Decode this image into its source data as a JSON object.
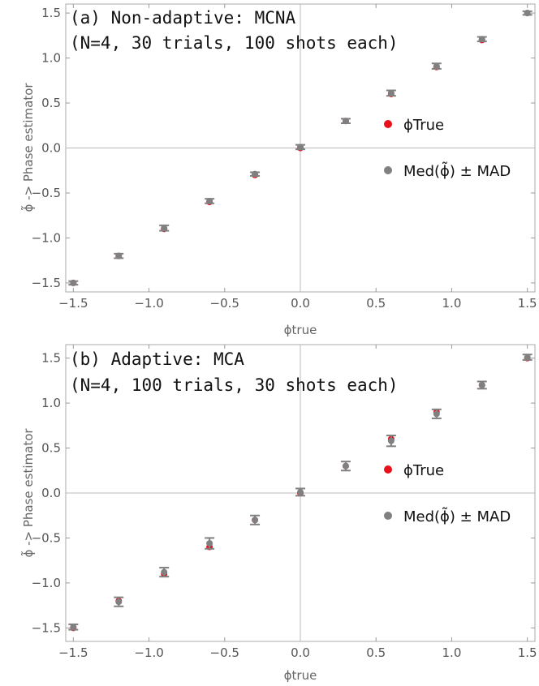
{
  "chart_data": [
    {
      "type": "scatter",
      "title_line1": "(a) Non-adaptive: MCNA",
      "title_line2": "(N=4, 30 trials, 100 shots each)",
      "xlabel": "ϕtrue",
      "ylabel": "ϕ̃ -> Phase estimator",
      "xlim": [
        -1.55,
        1.55
      ],
      "ylim": [
        -1.6,
        1.6
      ],
      "xticks": [
        -1.5,
        -1.0,
        -0.5,
        0.0,
        0.5,
        1.0,
        1.5
      ],
      "xtick_labels": [
        "−1.5",
        "−1.0",
        "−0.5",
        "0.0",
        "0.5",
        "1.0",
        "1.5"
      ],
      "yticks": [
        -1.5,
        -1.0,
        -0.5,
        0.0,
        0.5,
        1.0,
        1.5
      ],
      "ytick_labels": [
        "−1.5",
        "−1.0",
        "−0.5",
        "0.0",
        "0.5",
        "1.0",
        "1.5"
      ],
      "legend": {
        "placement": "right",
        "entries": [
          "ϕTrue",
          "Med(ϕ̃) ± MAD"
        ]
      },
      "colors": {
        "true": "#e8101a",
        "median": "#808080"
      },
      "x": [
        -1.5,
        -1.2,
        -0.9,
        -0.6,
        -0.3,
        0.0,
        0.3,
        0.6,
        0.9,
        1.2,
        1.5
      ],
      "series": [
        {
          "name": "ϕTrue",
          "values": [
            -1.5,
            -1.2,
            -0.9,
            -0.6,
            -0.3,
            0.0,
            0.3,
            0.6,
            0.9,
            1.2,
            1.5
          ]
        },
        {
          "name": "Med(ϕ̃) ± MAD",
          "values": [
            -1.5,
            -1.2,
            -0.89,
            -0.59,
            -0.29,
            0.01,
            0.3,
            0.61,
            0.91,
            1.21,
            1.5
          ],
          "err": [
            0.02,
            0.025,
            0.03,
            0.025,
            0.02,
            0.025,
            0.025,
            0.03,
            0.03,
            0.025,
            0.02
          ]
        }
      ]
    },
    {
      "type": "scatter",
      "title_line1": "(b) Adaptive: MCA",
      "title_line2": "(N=4, 100 trials, 30 shots each)",
      "xlabel": "ϕtrue",
      "ylabel": "ϕ̃ -> Phase estimator",
      "xlim": [
        -1.55,
        1.55
      ],
      "ylim": [
        -1.65,
        1.65
      ],
      "xticks": [
        -1.5,
        -1.0,
        -0.5,
        0.0,
        0.5,
        1.0,
        1.5
      ],
      "xtick_labels": [
        "−1.5",
        "−1.0",
        "−0.5",
        "0.0",
        "0.5",
        "1.0",
        "1.5"
      ],
      "yticks": [
        -1.5,
        -1.0,
        -0.5,
        0.0,
        0.5,
        1.0,
        1.5
      ],
      "ytick_labels": [
        "−1.5",
        "−1.0",
        "−0.5",
        "0.0",
        "0.5",
        "1.0",
        "1.5"
      ],
      "legend": {
        "placement": "right",
        "entries": [
          "ϕTrue",
          "Med(ϕ̃) ± MAD"
        ]
      },
      "colors": {
        "true": "#e8101a",
        "median": "#808080"
      },
      "x": [
        -1.5,
        -1.2,
        -0.9,
        -0.6,
        -0.3,
        0.0,
        0.3,
        0.6,
        0.9,
        1.2,
        1.5
      ],
      "series": [
        {
          "name": "ϕTrue",
          "values": [
            -1.5,
            -1.2,
            -0.9,
            -0.6,
            -0.3,
            0.0,
            0.3,
            0.6,
            0.9,
            1.2,
            1.5
          ]
        },
        {
          "name": "Med(ϕ̃) ± MAD",
          "values": [
            -1.49,
            -1.21,
            -0.88,
            -0.56,
            -0.3,
            0.01,
            0.3,
            0.58,
            0.88,
            1.2,
            1.51
          ],
          "err": [
            0.03,
            0.05,
            0.05,
            0.06,
            0.05,
            0.04,
            0.05,
            0.06,
            0.05,
            0.04,
            0.03
          ]
        }
      ]
    }
  ]
}
